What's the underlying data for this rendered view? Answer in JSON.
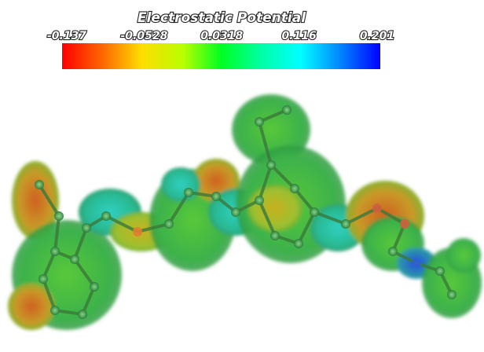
{
  "colorbar": {
    "title": "Electrostatic Potential",
    "range": [
      -0.137,
      0.201
    ],
    "ticks": [
      -0.137,
      -0.0528,
      0.0318,
      0.116,
      0.201
    ]
  }
}
